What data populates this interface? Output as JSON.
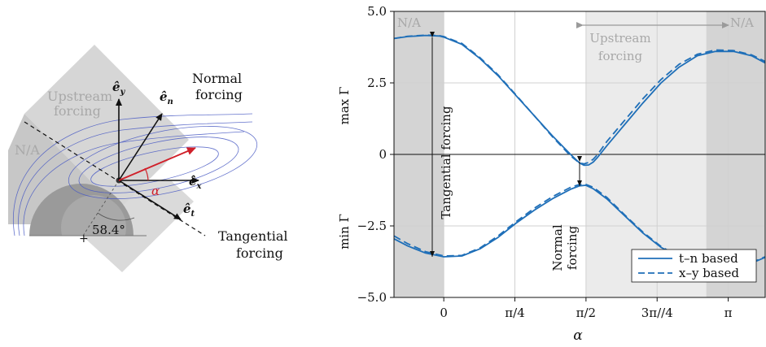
{
  "left_panel": {
    "upstream_label": [
      "Upstream",
      "forcing"
    ],
    "na_label": "N/A",
    "normal_label": [
      "Normal",
      "forcing"
    ],
    "tangential_label": [
      "Tangential",
      "forcing"
    ],
    "angle_label": "58.4°",
    "alpha_label": "α",
    "vector_labels": {
      "ey": "ê",
      "ey_sub": "y",
      "en": "ê",
      "en_sub": "n",
      "ex": "ê",
      "ex_sub": "x",
      "et": "ê",
      "et_sub": "t"
    },
    "colors": {
      "region": "#c8c8c8",
      "cylinder": "#9a9a9a",
      "streamline": "#4a5bc4",
      "alpha_vector": "#d0202a"
    }
  },
  "chart_data": {
    "type": "line",
    "xlabel": "α",
    "ylabel_top": "max Γ",
    "ylabel_bottom": "min Γ",
    "xlim": [
      -0.55,
      3.55
    ],
    "ylim": [
      -5.0,
      5.0
    ],
    "xticks": [
      0,
      0.785398,
      1.570796,
      2.356194,
      3.141593
    ],
    "xtick_labels": [
      "0",
      "π/4",
      "π/2",
      "3π//4",
      "π"
    ],
    "yticks": [
      5.0,
      2.5,
      0,
      -2.5,
      -5.0
    ],
    "ytick_labels": [
      "5.0",
      "2.5",
      "0",
      "−2.5",
      "−5.0"
    ],
    "grid": true,
    "legend_position": "bottom-right",
    "series": [
      {
        "name": "t–n based",
        "style": "solid",
        "max": {
          "x": [
            -0.55,
            -0.4,
            -0.2,
            -0.05,
            0.0,
            0.2,
            0.4,
            0.6,
            0.8,
            1.0,
            1.2,
            1.4,
            1.5,
            1.55,
            1.6,
            1.65,
            1.7,
            1.8,
            2.0,
            2.2,
            2.4,
            2.6,
            2.8,
            3.0,
            3.2,
            3.4,
            3.55
          ],
          "y": [
            4.05,
            4.12,
            4.16,
            4.14,
            4.1,
            3.85,
            3.35,
            2.75,
            2.05,
            1.35,
            0.65,
            0.0,
            -0.3,
            -0.38,
            -0.37,
            -0.27,
            -0.1,
            0.3,
            1.05,
            1.8,
            2.5,
            3.05,
            3.45,
            3.6,
            3.6,
            3.45,
            3.2
          ]
        },
        "min": {
          "x": [
            -0.55,
            -0.4,
            -0.2,
            0.0,
            0.2,
            0.4,
            0.6,
            0.8,
            1.0,
            1.2,
            1.4,
            1.5,
            1.57,
            1.65,
            1.8,
            2.0,
            2.2,
            2.4,
            2.6,
            2.8,
            3.0,
            3.2,
            3.4,
            3.55
          ],
          "y": [
            -2.95,
            -3.2,
            -3.45,
            -3.58,
            -3.55,
            -3.3,
            -2.9,
            -2.4,
            -1.95,
            -1.55,
            -1.22,
            -1.1,
            -1.08,
            -1.2,
            -1.55,
            -2.15,
            -2.75,
            -3.25,
            -3.6,
            -3.85,
            -3.95,
            -3.95,
            -3.8,
            -3.6
          ]
        }
      },
      {
        "name": "x–y based",
        "style": "dashed",
        "max": {
          "x": [
            -0.55,
            -0.4,
            -0.2,
            -0.05,
            0.0,
            0.2,
            0.4,
            0.6,
            0.8,
            1.0,
            1.2,
            1.4,
            1.5,
            1.55,
            1.6,
            1.65,
            1.7,
            1.8,
            2.0,
            2.2,
            2.4,
            2.6,
            2.8,
            3.0,
            3.2,
            3.4,
            3.55
          ],
          "y": [
            4.05,
            4.13,
            4.17,
            4.15,
            4.12,
            3.88,
            3.38,
            2.78,
            2.07,
            1.35,
            0.62,
            -0.05,
            -0.3,
            -0.33,
            -0.28,
            -0.17,
            0.0,
            0.45,
            1.2,
            1.95,
            2.62,
            3.15,
            3.5,
            3.65,
            3.63,
            3.48,
            3.25
          ]
        },
        "min": {
          "x": [
            -0.55,
            -0.4,
            -0.2,
            0.0,
            0.2,
            0.4,
            0.6,
            0.8,
            1.0,
            1.2,
            1.4,
            1.5,
            1.57,
            1.65,
            1.8,
            2.0,
            2.2,
            2.4,
            2.6,
            2.8,
            3.0,
            3.2,
            3.4,
            3.55
          ],
          "y": [
            -2.85,
            -3.12,
            -3.4,
            -3.55,
            -3.53,
            -3.27,
            -2.85,
            -2.35,
            -1.88,
            -1.48,
            -1.15,
            -1.05,
            -1.05,
            -1.15,
            -1.5,
            -2.12,
            -2.72,
            -3.22,
            -3.58,
            -3.83,
            -3.93,
            -3.93,
            -3.78,
            -3.58
          ]
        }
      }
    ],
    "shaded_regions": [
      {
        "label": "N/A",
        "x": [
          -0.55,
          0.0
        ]
      },
      {
        "label": "N/A",
        "x": [
          2.9,
          3.55
        ]
      },
      {
        "label": "Upstream forcing",
        "x": [
          1.570796,
          3.55
        ]
      }
    ],
    "annotations": {
      "upstream": [
        "Upstream",
        "forcing"
      ],
      "na": "N/A",
      "tangential": "Tangential forcing",
      "normal": [
        "Normal",
        "forcing"
      ]
    },
    "colors": {
      "line": "#1f6fb8",
      "shade_light": "#ebebeb",
      "shade_dark": "#d4d4d4",
      "grid": "#d0d0d0"
    }
  }
}
